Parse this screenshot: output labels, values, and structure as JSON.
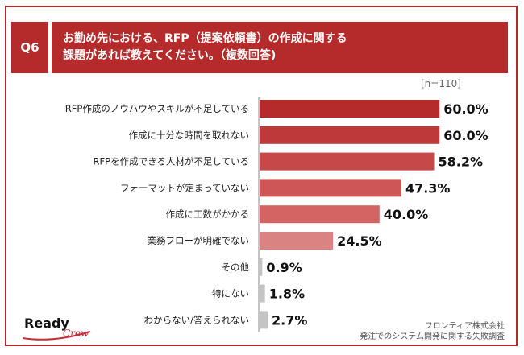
{
  "header": {
    "question_number": "Q6",
    "question_text": "お勤め先における、RFP（提案依頼書）の作成に関する\n課題があれば教えてください。（複数回答)"
  },
  "sample_size": "[n=110]",
  "chart_data": {
    "type": "bar",
    "orientation": "horizontal",
    "categories": [
      "RFP作成のノウハウやスキルが不足している",
      "作成に十分な時間を取れない",
      "RFPを作成できる人材が不足している",
      "フォーマットが定まっていない",
      "作成に工数がかかる",
      "業務フローが明確でない",
      "その他",
      "特にない",
      "わからない/答えられない"
    ],
    "values": [
      60.0,
      60.0,
      58.2,
      47.3,
      40.0,
      24.5,
      0.9,
      1.8,
      2.7
    ],
    "value_labels": [
      "60.0%",
      "60.0%",
      "58.2%",
      "47.3%",
      "40.0%",
      "24.5%",
      "0.9%",
      "1.8%",
      "2.7%"
    ],
    "bar_colors": [
      "#b52b2b",
      "#be3a3a",
      "#c64848",
      "#ce5656",
      "#d46464",
      "#d98383",
      "#c4c4c4",
      "#c4c4c4",
      "#c4c4c4"
    ],
    "xlim": [
      0,
      100
    ]
  },
  "logo": {
    "word1": "Ready",
    "word2": "Crew"
  },
  "source": {
    "line1": "フロンティア株式会社",
    "line2": "発注でのシステム開発に関する失敗調査"
  }
}
